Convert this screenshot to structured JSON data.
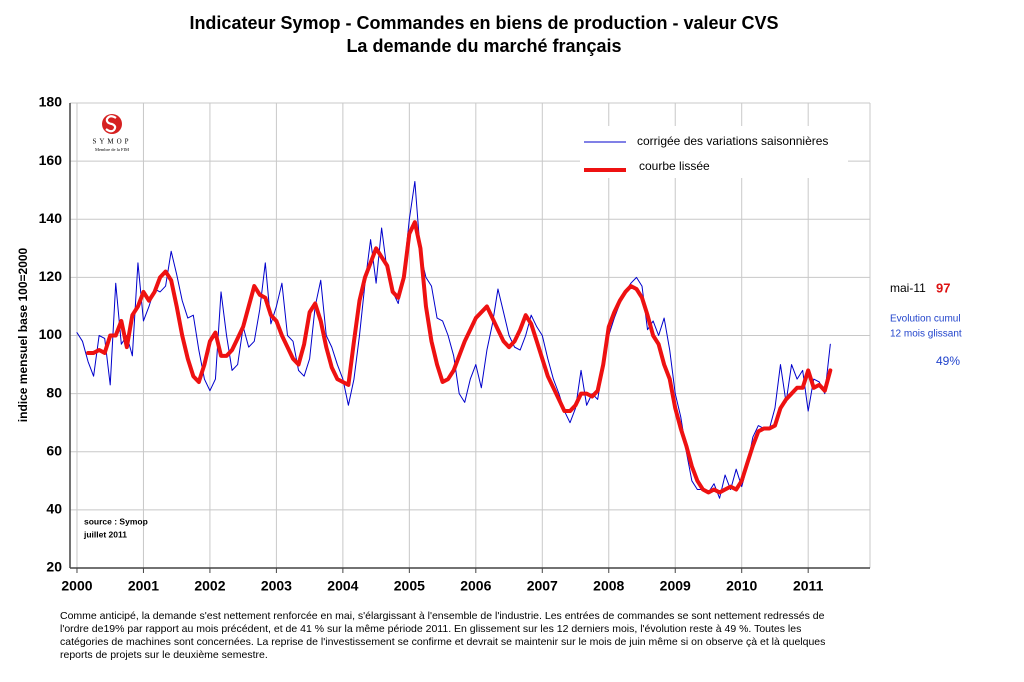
{
  "chart_data": {
    "type": "line",
    "title": [
      "Indicateur Symop - Commandes en biens de production  -  valeur CVS",
      "La demande du marché français"
    ],
    "y_label": "indice mensuel base 100=2000",
    "logo": {
      "name": "SYMOP",
      "subtitle": "Membre de la FIM"
    },
    "source": [
      "source : Symop",
      "juillet  2011"
    ],
    "annotation": {
      "label": "mai-11",
      "value": 97,
      "text": [
        "Evolution cumul",
        "12 mois glissant"
      ],
      "evolution": 49,
      "evolution_label": "49%"
    },
    "footnote": [
      "Comme anticipé, la demande s'est nettement renforcée en mai, s'élargissant à l'ensemble de l'industrie. Les entrées de commandes se sont nettement redressés de",
      "l'ordre de19% par rapport au mois précédent, et de 41 % sur la même période 2011. En glissement sur les 12 derniers mois, l'évolution reste à 49 %. Toutes les",
      "catégories de machines sont concernées. La reprise de l'investissement se confirme et devrait se maintenir sur le mois de juin même si on observe çà et là quelques",
      "reports de projets sur le deuxième semestre."
    ],
    "xlim": [
      1999.895,
      2011.93
    ],
    "ylim": [
      20,
      180
    ],
    "xticks": [
      2000,
      2001,
      2002,
      2003,
      2004,
      2005,
      2006,
      2007,
      2008,
      2009,
      2010,
      2011
    ],
    "yticks": [
      20,
      40,
      60,
      80,
      100,
      120,
      140,
      160,
      180
    ],
    "grid": true,
    "x": [
      2000,
      2000.083,
      2000.167,
      2000.25,
      2000.333,
      2000.417,
      2000.5,
      2000.583,
      2000.667,
      2000.75,
      2000.833,
      2000.917,
      2001,
      2001.083,
      2001.167,
      2001.25,
      2001.333,
      2001.417,
      2001.5,
      2001.583,
      2001.667,
      2001.75,
      2001.833,
      2001.917,
      2002,
      2002.083,
      2002.167,
      2002.25,
      2002.333,
      2002.417,
      2002.5,
      2002.583,
      2002.667,
      2002.75,
      2002.833,
      2002.917,
      2003,
      2003.083,
      2003.167,
      2003.25,
      2003.333,
      2003.417,
      2003.5,
      2003.583,
      2003.667,
      2003.75,
      2003.833,
      2003.917,
      2004,
      2004.083,
      2004.167,
      2004.25,
      2004.333,
      2004.417,
      2004.5,
      2004.583,
      2004.667,
      2004.75,
      2004.833,
      2004.917,
      2005,
      2005.083,
      2005.167,
      2005.25,
      2005.333,
      2005.417,
      2005.5,
      2005.583,
      2005.667,
      2005.75,
      2005.833,
      2005.917,
      2006,
      2006.083,
      2006.167,
      2006.25,
      2006.333,
      2006.417,
      2006.5,
      2006.583,
      2006.667,
      2006.75,
      2006.833,
      2006.917,
      2007,
      2007.083,
      2007.167,
      2007.25,
      2007.333,
      2007.417,
      2007.5,
      2007.583,
      2007.667,
      2007.75,
      2007.833,
      2007.917,
      2008,
      2008.083,
      2008.167,
      2008.25,
      2008.333,
      2008.417,
      2008.5,
      2008.583,
      2008.667,
      2008.75,
      2008.833,
      2008.917,
      2009,
      2009.083,
      2009.167,
      2009.25,
      2009.333,
      2009.417,
      2009.5,
      2009.583,
      2009.667,
      2009.75,
      2009.833,
      2009.917,
      2010,
      2010.083,
      2010.167,
      2010.25,
      2010.333,
      2010.417,
      2010.5,
      2010.583,
      2010.667,
      2010.75,
      2010.833,
      2010.917,
      2011,
      2011.083,
      2011.167,
      2011.25,
      2011.333
    ],
    "series": [
      {
        "name": "corrigée des variations saisonnières",
        "color": "#0000cc",
        "width": 1,
        "values": [
          101,
          98,
          91,
          86,
          100,
          99,
          83,
          118,
          97,
          100,
          93,
          125,
          105,
          110,
          116,
          115,
          117,
          129,
          121,
          112,
          106,
          107,
          95,
          85,
          81,
          85,
          115,
          100,
          88,
          90,
          103,
          96,
          98,
          109,
          125,
          104,
          110,
          118,
          100,
          98,
          88,
          86,
          92,
          110,
          119,
          100,
          96,
          90,
          85,
          76,
          85,
          100,
          118,
          133,
          118,
          137,
          122,
          115,
          111,
          122,
          140,
          153,
          128,
          120,
          117,
          106,
          105,
          100,
          93,
          80,
          77,
          85,
          90,
          82,
          95,
          104,
          116,
          108,
          100,
          96,
          95,
          100,
          107,
          103,
          100,
          92,
          85,
          80,
          74,
          70,
          75,
          88,
          76,
          80,
          78,
          90,
          100,
          106,
          111,
          115,
          118,
          120,
          117,
          102,
          105,
          100,
          106,
          95,
          80,
          72,
          60,
          50,
          47,
          47,
          46,
          49,
          44,
          52,
          47,
          54,
          48,
          55,
          65,
          69,
          68,
          68,
          75,
          90,
          77,
          90,
          85,
          88,
          74,
          85,
          84,
          80,
          97
        ]
      },
      {
        "name": "courbe lissée",
        "color": "#ee1111",
        "width": 4,
        "values": [
          null,
          null,
          94,
          94,
          95,
          94,
          100,
          100,
          105,
          96,
          107,
          110,
          115,
          112,
          115,
          120,
          122,
          119,
          110,
          100,
          92,
          86,
          84,
          90,
          98,
          101,
          93,
          93,
          95,
          99,
          103,
          110,
          117,
          114,
          113,
          107,
          105,
          100,
          96,
          92,
          90,
          97,
          108,
          111,
          105,
          96,
          89,
          85,
          84,
          83,
          98,
          112,
          120,
          125,
          130,
          127,
          124,
          115,
          113,
          120,
          135,
          139,
          130,
          110,
          98,
          90,
          84,
          85,
          88,
          93,
          98,
          102,
          106,
          108,
          110,
          106,
          102,
          98,
          96,
          98,
          102,
          107,
          104,
          98,
          92,
          86,
          82,
          78,
          74,
          74,
          76,
          80,
          80,
          79,
          81,
          90,
          103,
          108,
          112,
          115,
          117,
          116,
          113,
          107,
          100,
          97,
          90,
          85,
          75,
          68,
          62,
          55,
          50,
          47,
          46,
          47,
          46,
          47,
          48,
          47,
          50,
          56,
          62,
          67,
          68,
          68,
          69,
          75,
          78,
          80,
          82,
          82,
          88,
          82,
          83,
          81,
          88
        ]
      }
    ]
  }
}
